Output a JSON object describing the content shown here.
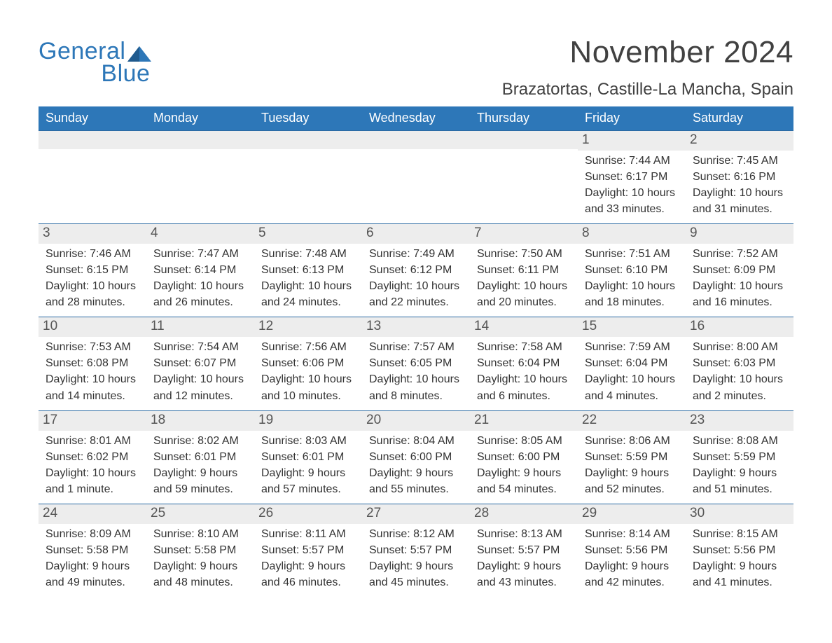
{
  "logo": {
    "line1": "General",
    "line2": "Blue",
    "sail_color": "#2d77b8"
  },
  "title": {
    "month_year": "November 2024",
    "location": "Brazatortas, Castille-La Mancha, Spain"
  },
  "colors": {
    "header_bg": "#2d77b8",
    "header_text": "#ffffff",
    "row_border": "#2b6aa3",
    "daynumber_bg": "#ededed",
    "body_text": "#333333",
    "title_text": "#414141",
    "background": "#ffffff"
  },
  "weekdays": [
    "Sunday",
    "Monday",
    "Tuesday",
    "Wednesday",
    "Thursday",
    "Friday",
    "Saturday"
  ],
  "weeks": [
    [
      {
        "empty": true
      },
      {
        "empty": true
      },
      {
        "empty": true
      },
      {
        "empty": true
      },
      {
        "empty": true
      },
      {
        "day": "1",
        "sunrise": "Sunrise: 7:44 AM",
        "sunset": "Sunset: 6:17 PM",
        "dayl1": "Daylight: 10 hours",
        "dayl2": "and 33 minutes."
      },
      {
        "day": "2",
        "sunrise": "Sunrise: 7:45 AM",
        "sunset": "Sunset: 6:16 PM",
        "dayl1": "Daylight: 10 hours",
        "dayl2": "and 31 minutes."
      }
    ],
    [
      {
        "day": "3",
        "sunrise": "Sunrise: 7:46 AM",
        "sunset": "Sunset: 6:15 PM",
        "dayl1": "Daylight: 10 hours",
        "dayl2": "and 28 minutes."
      },
      {
        "day": "4",
        "sunrise": "Sunrise: 7:47 AM",
        "sunset": "Sunset: 6:14 PM",
        "dayl1": "Daylight: 10 hours",
        "dayl2": "and 26 minutes."
      },
      {
        "day": "5",
        "sunrise": "Sunrise: 7:48 AM",
        "sunset": "Sunset: 6:13 PM",
        "dayl1": "Daylight: 10 hours",
        "dayl2": "and 24 minutes."
      },
      {
        "day": "6",
        "sunrise": "Sunrise: 7:49 AM",
        "sunset": "Sunset: 6:12 PM",
        "dayl1": "Daylight: 10 hours",
        "dayl2": "and 22 minutes."
      },
      {
        "day": "7",
        "sunrise": "Sunrise: 7:50 AM",
        "sunset": "Sunset: 6:11 PM",
        "dayl1": "Daylight: 10 hours",
        "dayl2": "and 20 minutes."
      },
      {
        "day": "8",
        "sunrise": "Sunrise: 7:51 AM",
        "sunset": "Sunset: 6:10 PM",
        "dayl1": "Daylight: 10 hours",
        "dayl2": "and 18 minutes."
      },
      {
        "day": "9",
        "sunrise": "Sunrise: 7:52 AM",
        "sunset": "Sunset: 6:09 PM",
        "dayl1": "Daylight: 10 hours",
        "dayl2": "and 16 minutes."
      }
    ],
    [
      {
        "day": "10",
        "sunrise": "Sunrise: 7:53 AM",
        "sunset": "Sunset: 6:08 PM",
        "dayl1": "Daylight: 10 hours",
        "dayl2": "and 14 minutes."
      },
      {
        "day": "11",
        "sunrise": "Sunrise: 7:54 AM",
        "sunset": "Sunset: 6:07 PM",
        "dayl1": "Daylight: 10 hours",
        "dayl2": "and 12 minutes."
      },
      {
        "day": "12",
        "sunrise": "Sunrise: 7:56 AM",
        "sunset": "Sunset: 6:06 PM",
        "dayl1": "Daylight: 10 hours",
        "dayl2": "and 10 minutes."
      },
      {
        "day": "13",
        "sunrise": "Sunrise: 7:57 AM",
        "sunset": "Sunset: 6:05 PM",
        "dayl1": "Daylight: 10 hours",
        "dayl2": "and 8 minutes."
      },
      {
        "day": "14",
        "sunrise": "Sunrise: 7:58 AM",
        "sunset": "Sunset: 6:04 PM",
        "dayl1": "Daylight: 10 hours",
        "dayl2": "and 6 minutes."
      },
      {
        "day": "15",
        "sunrise": "Sunrise: 7:59 AM",
        "sunset": "Sunset: 6:04 PM",
        "dayl1": "Daylight: 10 hours",
        "dayl2": "and 4 minutes."
      },
      {
        "day": "16",
        "sunrise": "Sunrise: 8:00 AM",
        "sunset": "Sunset: 6:03 PM",
        "dayl1": "Daylight: 10 hours",
        "dayl2": "and 2 minutes."
      }
    ],
    [
      {
        "day": "17",
        "sunrise": "Sunrise: 8:01 AM",
        "sunset": "Sunset: 6:02 PM",
        "dayl1": "Daylight: 10 hours",
        "dayl2": "and 1 minute."
      },
      {
        "day": "18",
        "sunrise": "Sunrise: 8:02 AM",
        "sunset": "Sunset: 6:01 PM",
        "dayl1": "Daylight: 9 hours",
        "dayl2": "and 59 minutes."
      },
      {
        "day": "19",
        "sunrise": "Sunrise: 8:03 AM",
        "sunset": "Sunset: 6:01 PM",
        "dayl1": "Daylight: 9 hours",
        "dayl2": "and 57 minutes."
      },
      {
        "day": "20",
        "sunrise": "Sunrise: 8:04 AM",
        "sunset": "Sunset: 6:00 PM",
        "dayl1": "Daylight: 9 hours",
        "dayl2": "and 55 minutes."
      },
      {
        "day": "21",
        "sunrise": "Sunrise: 8:05 AM",
        "sunset": "Sunset: 6:00 PM",
        "dayl1": "Daylight: 9 hours",
        "dayl2": "and 54 minutes."
      },
      {
        "day": "22",
        "sunrise": "Sunrise: 8:06 AM",
        "sunset": "Sunset: 5:59 PM",
        "dayl1": "Daylight: 9 hours",
        "dayl2": "and 52 minutes."
      },
      {
        "day": "23",
        "sunrise": "Sunrise: 8:08 AM",
        "sunset": "Sunset: 5:59 PM",
        "dayl1": "Daylight: 9 hours",
        "dayl2": "and 51 minutes."
      }
    ],
    [
      {
        "day": "24",
        "sunrise": "Sunrise: 8:09 AM",
        "sunset": "Sunset: 5:58 PM",
        "dayl1": "Daylight: 9 hours",
        "dayl2": "and 49 minutes."
      },
      {
        "day": "25",
        "sunrise": "Sunrise: 8:10 AM",
        "sunset": "Sunset: 5:58 PM",
        "dayl1": "Daylight: 9 hours",
        "dayl2": "and 48 minutes."
      },
      {
        "day": "26",
        "sunrise": "Sunrise: 8:11 AM",
        "sunset": "Sunset: 5:57 PM",
        "dayl1": "Daylight: 9 hours",
        "dayl2": "and 46 minutes."
      },
      {
        "day": "27",
        "sunrise": "Sunrise: 8:12 AM",
        "sunset": "Sunset: 5:57 PM",
        "dayl1": "Daylight: 9 hours",
        "dayl2": "and 45 minutes."
      },
      {
        "day": "28",
        "sunrise": "Sunrise: 8:13 AM",
        "sunset": "Sunset: 5:57 PM",
        "dayl1": "Daylight: 9 hours",
        "dayl2": "and 43 minutes."
      },
      {
        "day": "29",
        "sunrise": "Sunrise: 8:14 AM",
        "sunset": "Sunset: 5:56 PM",
        "dayl1": "Daylight: 9 hours",
        "dayl2": "and 42 minutes."
      },
      {
        "day": "30",
        "sunrise": "Sunrise: 8:15 AM",
        "sunset": "Sunset: 5:56 PM",
        "dayl1": "Daylight: 9 hours",
        "dayl2": "and 41 minutes."
      }
    ]
  ]
}
